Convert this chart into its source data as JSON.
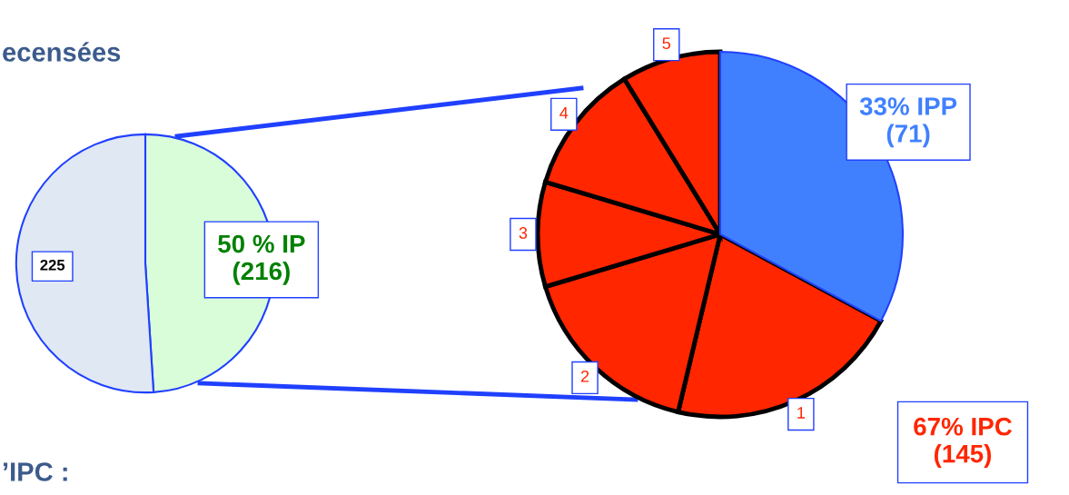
{
  "chart_data": [
    {
      "type": "pie",
      "title": "ecensées",
      "annotations": [
        "’IPC :"
      ],
      "categories": [
        null,
        null
      ],
      "values": [
        216,
        225
      ],
      "colors": [
        "#d9fcd9",
        "#dfe8f3"
      ],
      "value_labels": [
        "50 % IP\n(216)",
        "225"
      ]
    },
    {
      "type": "pie",
      "categories": [
        null,
        "1",
        "2",
        "3",
        "4",
        "5"
      ],
      "values": [
        71,
        45,
        36,
        20,
        25,
        19
      ],
      "colors": [
        "#4080ff",
        "#ff2600",
        "#ff2600",
        "#ff2600",
        "#ff2600",
        "#ff2600"
      ],
      "value_labels": [
        "33% IPP\n(71)",
        null,
        null,
        null,
        null,
        null
      ],
      "annotations": [
        "67% IPC\n(145)"
      ]
    }
  ]
}
